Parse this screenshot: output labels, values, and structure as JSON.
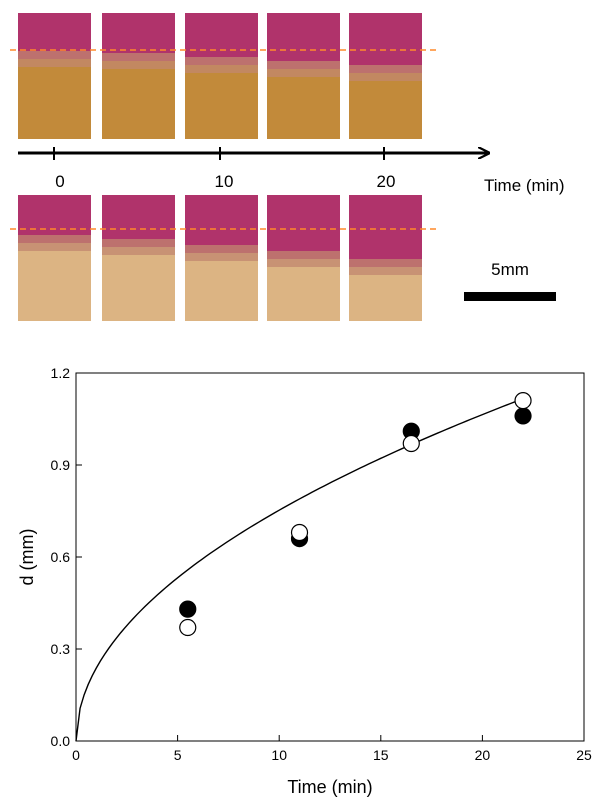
{
  "figure": {
    "timeline": {
      "ticks": [
        "0",
        "10",
        "20"
      ],
      "label": "Time (min)"
    },
    "scale_bar": {
      "label": "5mm"
    },
    "colors": {
      "magenta_layer": "#b0336b",
      "boundary_top_row": "#c1876f",
      "gel_top_row": "#c28a3a",
      "gel_bottom_row": "#dcb483",
      "dashed_line": "#ff8a2a"
    }
  },
  "chart_data": {
    "type": "scatter",
    "xlabel": "Time (min)",
    "ylabel": "d (mm)",
    "xlim": [
      0,
      25
    ],
    "ylim": [
      0,
      1.2
    ],
    "xticks": [
      "0",
      "5",
      "10",
      "15",
      "20",
      "25"
    ],
    "yticks": [
      "0.0",
      "0.3",
      "0.6",
      "0.9",
      "1.2"
    ],
    "series": [
      {
        "marker": "filled-circle",
        "x": [
          5.5,
          11.0,
          16.5,
          22.0
        ],
        "y": [
          0.43,
          0.66,
          1.01,
          1.06
        ]
      },
      {
        "marker": "open-circle",
        "x": [
          5.5,
          11.0,
          16.5,
          22.0
        ],
        "y": [
          0.37,
          0.68,
          0.97,
          1.11
        ]
      }
    ],
    "fit": {
      "form": "d = k * t^0.5",
      "k": 0.238
    },
    "grid": false
  }
}
